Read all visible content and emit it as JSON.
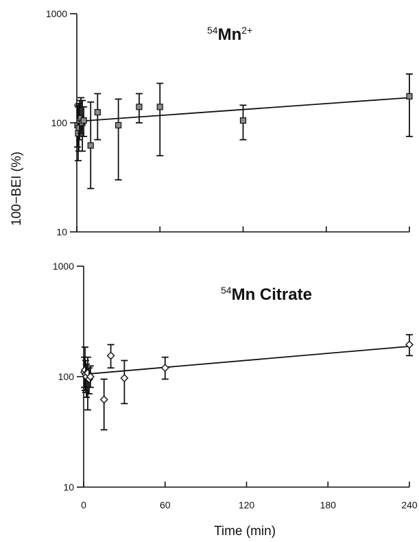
{
  "figure": {
    "ylabel": "100−BEI (%)",
    "xlabel": "Time (min)"
  },
  "chart_data": [
    {
      "type": "scatter",
      "title": "54Mn2+",
      "title_parts": {
        "pre_sup": "54",
        "main": "Mn",
        "post_sup": "2+"
      },
      "xlabel": "Time (min)",
      "ylabel": "100−BEI (%)",
      "y_scale": "log",
      "ylim": [
        10,
        1000
      ],
      "xlim": [
        0,
        240
      ],
      "x_ticks": [
        0,
        60,
        120,
        180,
        240
      ],
      "y_ticks": [
        10,
        100,
        1000
      ],
      "y_tick_labels": [
        "10",
        "100",
        "1000"
      ],
      "grid": false,
      "marker": "square",
      "series": [
        {
          "x": [
            0.5,
            1,
            1.5,
            2,
            3,
            4,
            5,
            10,
            15,
            30,
            45,
            60,
            120,
            240
          ],
          "y": [
            95,
            80,
            90,
            105,
            110,
            100,
            105,
            62,
            125,
            95,
            140,
            140,
            105,
            175
          ],
          "y_low": [
            60,
            45,
            55,
            70,
            80,
            55,
            75,
            25,
            70,
            30,
            100,
            50,
            70,
            75
          ],
          "y_high": [
            145,
            140,
            150,
            160,
            170,
            160,
            140,
            155,
            185,
            165,
            185,
            230,
            145,
            280
          ]
        }
      ],
      "trendline": {
        "x": [
          0,
          240
        ],
        "y": [
          103,
          170
        ]
      }
    },
    {
      "type": "scatter",
      "title": "54Mn Citrate",
      "title_parts": {
        "pre_sup": "54",
        "main": "Mn Citrate",
        "post_sup": ""
      },
      "xlabel": "Time (min)",
      "ylabel": "100−BEI (%)",
      "y_scale": "log",
      "ylim": [
        10,
        1000
      ],
      "xlim": [
        0,
        240
      ],
      "x_ticks": [
        0,
        60,
        120,
        180,
        240
      ],
      "x_tick_labels": [
        "0",
        "60",
        "120",
        "180",
        "240"
      ],
      "y_ticks": [
        10,
        100,
        1000
      ],
      "y_tick_labels": [
        "10",
        "100",
        "1000"
      ],
      "grid": false,
      "marker": "diamond",
      "series": [
        {
          "x": [
            0.5,
            1,
            1.5,
            2,
            3,
            4,
            5,
            15,
            20,
            30,
            60,
            240
          ],
          "y": [
            110,
            115,
            105,
            100,
            108,
            95,
            100,
            62,
            155,
            97,
            120,
            195
          ],
          "y_low": [
            80,
            75,
            72,
            65,
            50,
            70,
            80,
            33,
            120,
            57,
            95,
            155
          ],
          "y_high": [
            150,
            185,
            140,
            130,
            150,
            120,
            125,
            95,
            195,
            140,
            150,
            240
          ]
        }
      ],
      "trendline": {
        "x": [
          0,
          240
        ],
        "y": [
          105,
          188
        ]
      }
    }
  ]
}
